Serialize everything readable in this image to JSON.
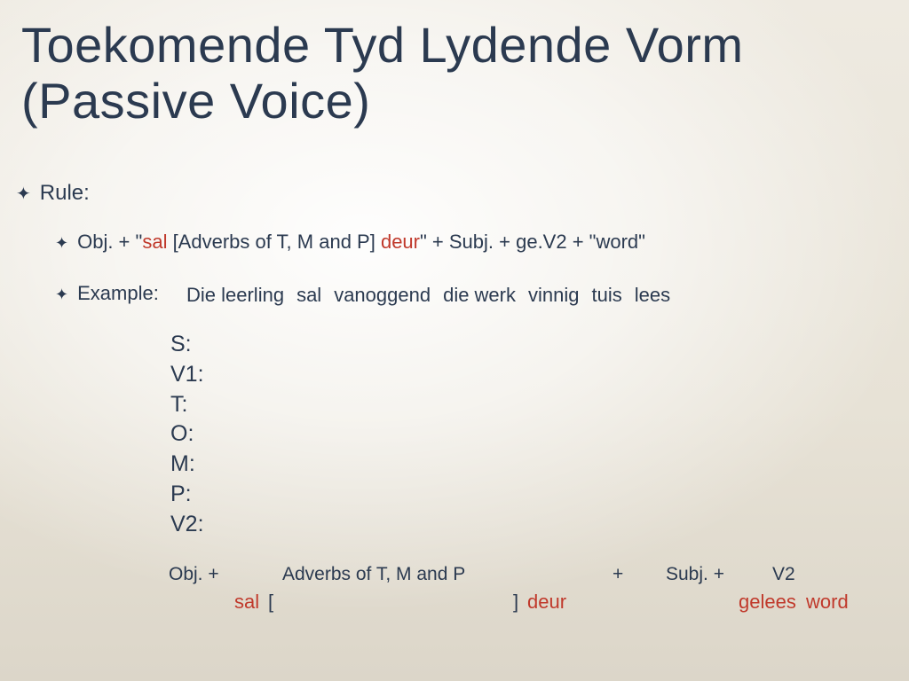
{
  "colors": {
    "text_primary": "#2b3a50",
    "accent_red": "#c0392b",
    "bg_top": "#eeeae1",
    "bg_bottom": "#dcd6c9"
  },
  "title": "Toekomende Tyd Lydende Vorm\n(Passive Voice)",
  "ruleLabel": "Rule:",
  "ruleLine": {
    "p1": "Obj. + \"",
    "sal": "sal",
    "p2": " [Adverbs of T, M and P] ",
    "deur": "deur",
    "p3": "\" + Subj. + ge.V2 + \"word\""
  },
  "exampleLabel": "Example:",
  "sentence": {
    "s1": "Die leerling",
    "s2": "sal",
    "s3": "vanoggend",
    "s4": "die werk",
    "s5": "vinnig",
    "s6": "tuis",
    "s7": "lees"
  },
  "labels": [
    "S:",
    "V1:",
    "T:",
    "O:",
    "M:",
    "P:",
    "V2:"
  ],
  "answer": {
    "objPlus": "Obj. +",
    "adv": "Adverbs of T, M and P",
    "plus2": "+",
    "subj": "Subj. +",
    "v2": "V2",
    "sal": "sal",
    "brOpen": "[",
    "brClose": "]",
    "deur": "deur",
    "gelees": "gelees",
    "word": "word"
  },
  "bulletGlyph": "✦"
}
